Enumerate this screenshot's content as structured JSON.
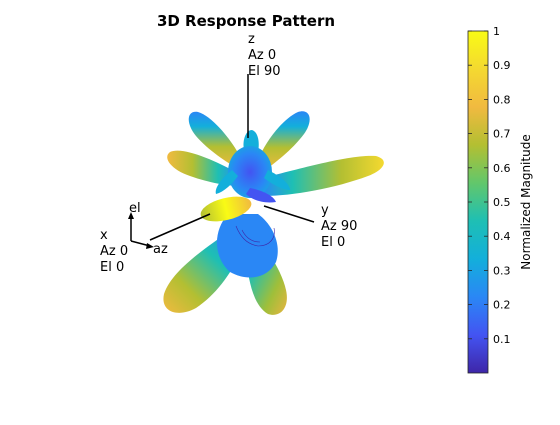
{
  "chart_data": {
    "type": "3d-surface",
    "title": "3D Response Pattern",
    "axes": {
      "z": {
        "label": "z",
        "az": "Az 0",
        "el": "El 90"
      },
      "y": {
        "label": "y",
        "az": "Az 90",
        "el": "El 0"
      },
      "x": {
        "label": "x",
        "az": "Az 0",
        "el": "El 0"
      }
    },
    "triad": {
      "elevation_label": "el",
      "azimuth_label": "az"
    },
    "colorbar": {
      "label": "Normalized Magnitude",
      "min": 0,
      "max": 1,
      "ticks": [
        0.1,
        0.2,
        0.3,
        0.4,
        0.5,
        0.6,
        0.7,
        0.8,
        0.9,
        1
      ],
      "tick_labels": [
        "0.1",
        "0.2",
        "0.3",
        "0.4",
        "0.5",
        "0.6",
        "0.7",
        "0.8",
        "0.9",
        "1"
      ],
      "colormap": "parula",
      "colors": [
        "#3e26a8",
        "#4354f2",
        "#2a87f5",
        "#13afdb",
        "#1ebfb4",
        "#62c76b",
        "#b3bf32",
        "#f1ba40",
        "#f4d930",
        "#f9fb15"
      ]
    }
  }
}
